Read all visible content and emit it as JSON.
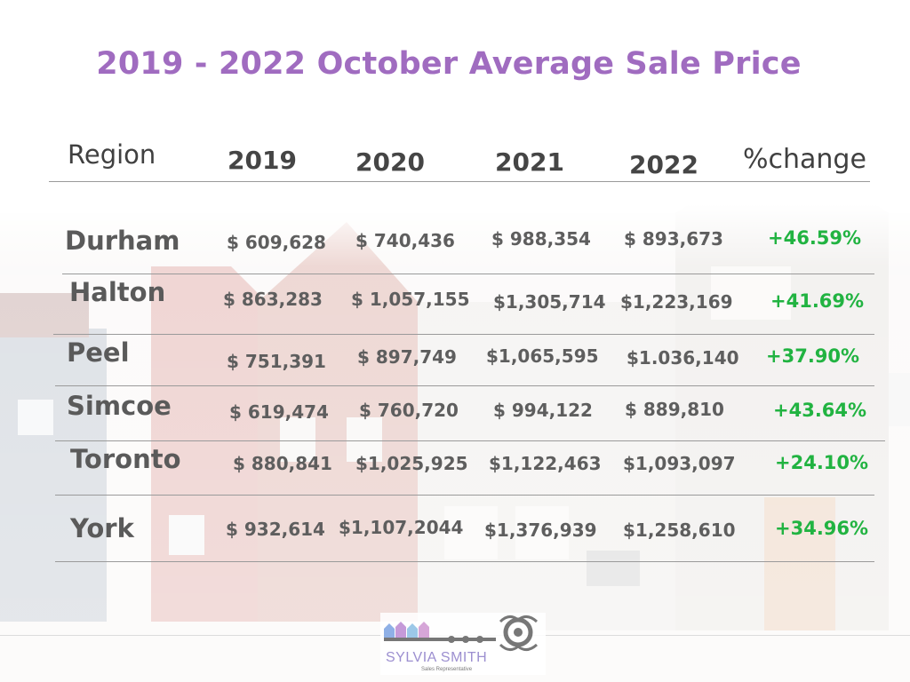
{
  "title": "2019 - 2022 October Average Sale Price",
  "headers": {
    "region": "Region",
    "y2019": "2019",
    "y2020": "2020",
    "y2021": "2021",
    "y2022": "2022",
    "change": "%change"
  },
  "rows": [
    {
      "region": "Durham",
      "v2019": "$ 609,628",
      "v2020": "$ 740,436",
      "v2021": "$ 988,354",
      "v2022": "$ 893,673",
      "change": "+46.59%"
    },
    {
      "region": "Halton",
      "v2019": "$ 863,283",
      "v2020": "$ 1,057,155",
      "v2021": "$1,305,714",
      "v2022": "$1,223,169",
      "change": "+41.69%"
    },
    {
      "region": "Peel",
      "v2019": "$ 751,391",
      "v2020": "$ 897,749",
      "v2021": "$1,065,595",
      "v2022": "$1.036,140",
      "change": "+37.90%"
    },
    {
      "region": "Simcoe",
      "v2019": "$ 619,474",
      "v2020": "$ 760,720",
      "v2021": "$ 994,122",
      "v2022": "$ 889,810",
      "change": "+43.64%"
    },
    {
      "region": "Toronto",
      "v2019": "$ 880,841",
      "v2020": "$1,025,925",
      "v2021": "$1,122,463",
      "v2022": "$1,093,097",
      "change": "+24.10%"
    },
    {
      "region": "York",
      "v2019": "$ 932,614",
      "v2020": "$1,107,2044",
      "v2021": "$1,376,939",
      "v2022": "$1,258,610",
      "change": "+34.96%"
    }
  ],
  "logo": {
    "name": "SYLVIA SMITH",
    "subtitle": "Sales Representative"
  },
  "colors": {
    "title": "#a06cc0",
    "positive_change": "#21b341",
    "text": "#5e5e5e"
  }
}
